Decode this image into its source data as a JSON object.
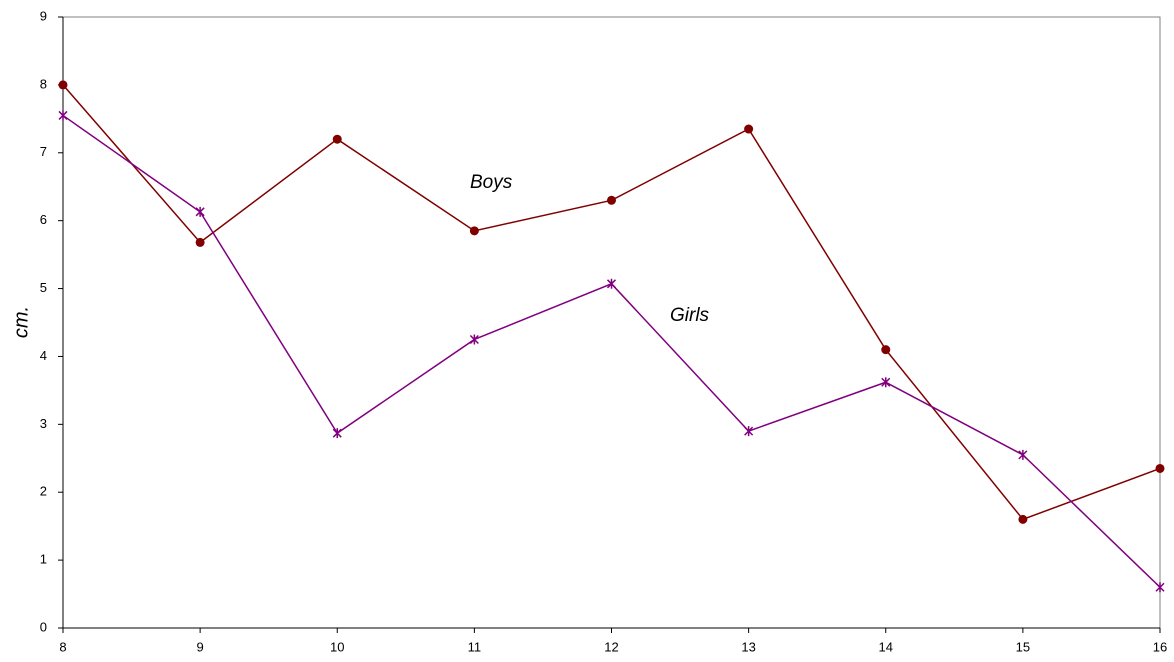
{
  "chart_data": {
    "type": "line",
    "y_label": "cm.",
    "x": [
      8,
      9,
      10,
      11,
      12,
      13,
      14,
      15,
      16
    ],
    "series": [
      {
        "name": "Boys",
        "color": "#800000",
        "marker": "circle",
        "values": [
          8,
          5.68,
          7.2,
          5.85,
          6.3,
          7.35,
          4.1,
          1.6,
          2.35
        ]
      },
      {
        "name": "Girls",
        "color": "#800080",
        "marker": "asterisk",
        "values": [
          7.55,
          6.13,
          2.87,
          4.25,
          5.07,
          2.9,
          3.62,
          2.55,
          0.6
        ]
      }
    ],
    "xlim": [
      8,
      16
    ],
    "xticks": [
      8,
      9,
      10,
      11,
      12,
      13,
      14,
      15,
      16
    ],
    "ylim": [
      0,
      9
    ],
    "yticks": [
      0,
      1,
      2,
      3,
      4,
      5,
      6,
      7,
      8,
      9
    ],
    "grid": false
  }
}
